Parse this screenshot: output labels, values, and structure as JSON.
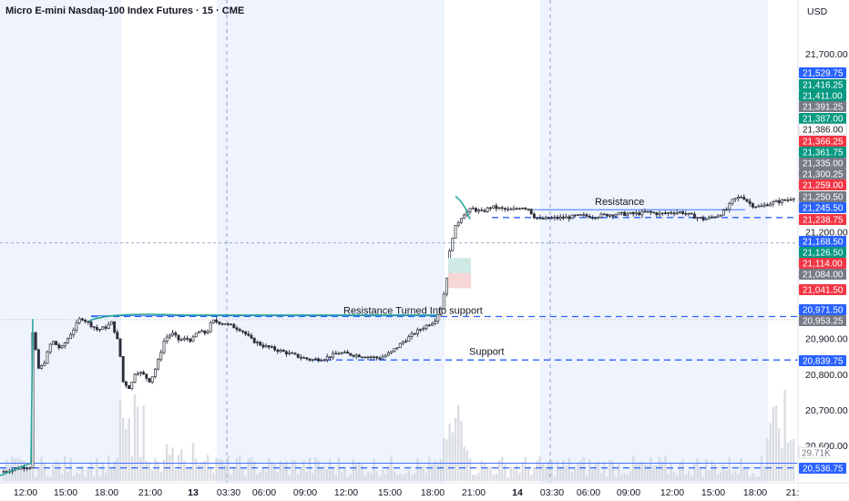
{
  "header": {
    "symbol_title": "Micro E-mini Nasdaq-100 Index Futures · 15 · CME",
    "currency": "USD"
  },
  "colors": {
    "up": "#089981",
    "down": "#f23645",
    "session_shade": "#eef3fe",
    "blue_line": "#2962ff",
    "green_line": "#26a69a",
    "volume": "#d1d4dc",
    "gray_tag": "#787b86"
  },
  "chart_data": {
    "type": "candlestick",
    "title": "Micro E-mini Nasdaq-100 Index Futures · 15 · CME",
    "ylim": [
      20500,
      21800
    ],
    "y_ticks": [
      {
        "value": 21700,
        "label": "21,700.00"
      },
      {
        "value": 21200,
        "label": "21,200.00"
      },
      {
        "value": 20900,
        "label": "20,900.00"
      },
      {
        "value": 20800,
        "label": "20,800.00"
      },
      {
        "value": 20700,
        "label": "20,700.00"
      },
      {
        "value": 20600,
        "label": "20,600.00"
      }
    ],
    "x_ticks": [
      {
        "label": "12:00",
        "bold": false
      },
      {
        "label": "15:00",
        "bold": false
      },
      {
        "label": "18:00",
        "bold": false
      },
      {
        "label": "21:00",
        "bold": false
      },
      {
        "label": "13",
        "bold": true
      },
      {
        "label": "03:30",
        "bold": false
      },
      {
        "label": "06:00",
        "bold": false
      },
      {
        "label": "09:00",
        "bold": false
      },
      {
        "label": "12:00",
        "bold": false
      },
      {
        "label": "15:00",
        "bold": false
      },
      {
        "label": "18:00",
        "bold": false
      },
      {
        "label": "21:00",
        "bold": false
      },
      {
        "label": "14",
        "bold": true
      },
      {
        "label": "03:30",
        "bold": false
      },
      {
        "label": "06:00",
        "bold": false
      },
      {
        "label": "09:00",
        "bold": false
      },
      {
        "label": "12:00",
        "bold": false
      },
      {
        "label": "15:00",
        "bold": false
      },
      {
        "label": "18:00",
        "bold": false
      },
      {
        "label": "21:"
      }
    ],
    "price_tags": [
      {
        "value": 21529.75,
        "label": "21,529.75",
        "style": "blue"
      },
      {
        "value": 21416.25,
        "label": "21,416.25",
        "style": "green"
      },
      {
        "value": 21411.0,
        "label": "21,411.00",
        "style": "green"
      },
      {
        "value": 21391.25,
        "label": "21,391.25",
        "style": "gray"
      },
      {
        "value": 21387.0,
        "label": "21,387.00",
        "style": "green"
      },
      {
        "value": 21386.0,
        "label": "21,386.00",
        "style": "white"
      },
      {
        "value": 21366.25,
        "label": "21,366.25",
        "style": "red"
      },
      {
        "value": 21361.75,
        "label": "21,361.75",
        "style": "green"
      },
      {
        "value": 21335.0,
        "label": "21,335.00",
        "style": "gray"
      },
      {
        "value": 21300.25,
        "label": "21,300.25",
        "style": "gray"
      },
      {
        "value": 21259.0,
        "label": "21,259.00",
        "style": "red"
      },
      {
        "value": 21250.5,
        "label": "21,250.50",
        "style": "gray"
      },
      {
        "value": 21245.5,
        "label": "21,245.50",
        "style": "blue"
      },
      {
        "value": 21238.75,
        "label": "21,238.75",
        "style": "red"
      },
      {
        "value": 21168.5,
        "label": "21,168.50",
        "style": "blue"
      },
      {
        "value": 21126.5,
        "label": "21,126.50",
        "style": "green"
      },
      {
        "value": 21114.0,
        "label": "21,114.00",
        "style": "red"
      },
      {
        "value": 21084.0,
        "label": "21,084.00",
        "style": "gray"
      },
      {
        "value": 21041.5,
        "label": "21,041.50",
        "style": "red"
      },
      {
        "value": 20971.5,
        "label": "20,971.50",
        "style": "blue"
      },
      {
        "value": 20953.25,
        "label": "20,953.25",
        "style": "gray"
      },
      {
        "value": 20839.75,
        "label": "20,839.75",
        "style": "blue"
      },
      {
        "value": 20536.75,
        "label": "20,536.75",
        "style": "blue"
      }
    ],
    "volume_tag": "29.71K",
    "annotations": [
      {
        "text": "Resistance",
        "value": 21270
      },
      {
        "text": "Resistance Turned Into support",
        "value": 20965
      },
      {
        "text": "Support",
        "value": 20850
      }
    ],
    "levels": [
      {
        "name": "resistance-level",
        "value": 21240
      },
      {
        "name": "turned-support-level",
        "value": 20960
      },
      {
        "name": "support-level",
        "value": 20840
      },
      {
        "name": "bottom-level",
        "value": 20537
      }
    ],
    "candles_summary": {
      "open": 20520,
      "high": 21300,
      "low": 20520,
      "last": 21300
    }
  }
}
